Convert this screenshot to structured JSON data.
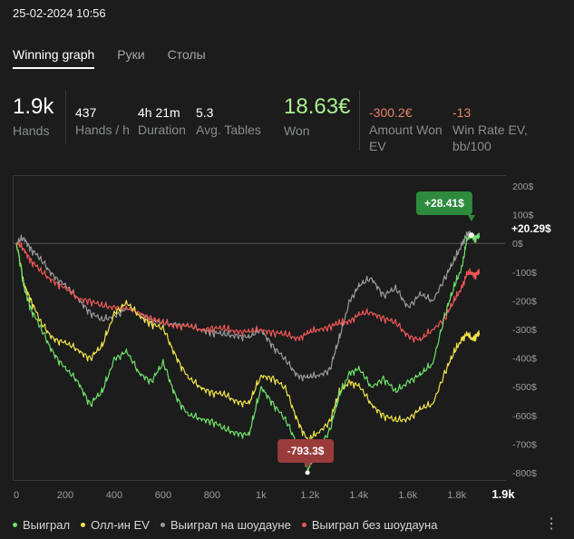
{
  "header": {
    "timestamp": "25-02-2024 10:56"
  },
  "tabs": [
    {
      "label": "Winning graph",
      "active": true
    },
    {
      "label": "Руки",
      "active": false
    },
    {
      "label": "Столы",
      "active": false
    }
  ],
  "stats": {
    "hands": {
      "value": "1.9k",
      "label": "Hands"
    },
    "hands_per_hour": {
      "value": "437",
      "label": "Hands / h"
    },
    "duration": {
      "value": "4h 21m",
      "label": "Duration"
    },
    "avg_tables": {
      "value": "5.3",
      "label": "Avg. Tables"
    },
    "won": {
      "value": "18.63€",
      "label": "Won"
    },
    "amount_won_ev": {
      "value": "-300.2€",
      "label": "Amount Won EV"
    },
    "win_rate_ev": {
      "value": "-13",
      "label": "Win Rate EV, bb/100"
    }
  },
  "colors": {
    "won": "#6ee06a",
    "allin_ev": "#f2e34a",
    "showdown": "#9a9a9a",
    "non_showdown": "#ef5656",
    "positive": "#a9f08a",
    "negative": "#e8846b",
    "callout_max": "#2e8b3e",
    "callout_min": "#9a3b3b"
  },
  "chart_data": {
    "type": "line",
    "x_ticks": [
      "0",
      "200",
      "400",
      "600",
      "800",
      "1k",
      "1.2k",
      "1.4k",
      "1.6k",
      "1.8k"
    ],
    "x_end_label": "1.9k",
    "y_ticks": [
      "200$",
      "100$",
      "0$",
      "-100$",
      "-200$",
      "-300$",
      "-400$",
      "-500$",
      "-600$",
      "-700$",
      "-800$"
    ],
    "xlim": [
      0,
      1890
    ],
    "ylim": [
      -820,
      230
    ],
    "reference_line": 0,
    "callouts": {
      "max": {
        "label": "+28.41$",
        "x": 1860,
        "y": 28.41
      },
      "min": {
        "label": "-793.3$",
        "x": 1190,
        "y": -793.3
      },
      "end": {
        "label": "+20.29$",
        "y": 20.29
      }
    },
    "series": [
      {
        "name": "Выиграл",
        "x": [
          0,
          30,
          60,
          100,
          150,
          200,
          250,
          300,
          350,
          400,
          450,
          500,
          550,
          600,
          650,
          700,
          750,
          800,
          850,
          900,
          950,
          1000,
          1050,
          1100,
          1150,
          1190,
          1230,
          1280,
          1320,
          1360,
          1400,
          1450,
          1500,
          1550,
          1600,
          1650,
          1700,
          1750,
          1790,
          1820,
          1840,
          1860,
          1875,
          1890
        ],
        "y": [
          0,
          -150,
          -230,
          -300,
          -380,
          -440,
          -480,
          -560,
          -520,
          -400,
          -380,
          -450,
          -480,
          -420,
          -530,
          -600,
          -610,
          -620,
          -650,
          -660,
          -670,
          -500,
          -560,
          -620,
          -700,
          -793.3,
          -720,
          -650,
          -530,
          -450,
          -440,
          -500,
          -470,
          -520,
          -480,
          -460,
          -420,
          -250,
          -150,
          -80,
          10,
          28.41,
          18,
          20.29
        ]
      },
      {
        "name": "Олл-ин EV",
        "x": [
          0,
          30,
          60,
          100,
          150,
          200,
          250,
          300,
          350,
          400,
          450,
          500,
          550,
          600,
          650,
          700,
          750,
          800,
          850,
          900,
          950,
          1000,
          1050,
          1100,
          1150,
          1190,
          1230,
          1280,
          1320,
          1360,
          1400,
          1450,
          1500,
          1550,
          1600,
          1650,
          1700,
          1750,
          1790,
          1820,
          1840,
          1860,
          1875,
          1890
        ],
        "y": [
          0,
          -140,
          -200,
          -280,
          -330,
          -350,
          -370,
          -400,
          -360,
          -240,
          -210,
          -250,
          -280,
          -300,
          -390,
          -470,
          -500,
          -520,
          -530,
          -550,
          -560,
          -460,
          -470,
          -510,
          -620,
          -690,
          -660,
          -620,
          -520,
          -480,
          -500,
          -560,
          -600,
          -620,
          -610,
          -580,
          -560,
          -450,
          -380,
          -330,
          -320,
          -330,
          -325,
          -320
        ]
      },
      {
        "name": "Выиграл на шоудауне",
        "x": [
          0,
          30,
          60,
          100,
          150,
          200,
          250,
          300,
          350,
          400,
          450,
          500,
          550,
          600,
          650,
          700,
          750,
          800,
          850,
          900,
          950,
          1000,
          1050,
          1100,
          1150,
          1190,
          1230,
          1280,
          1320,
          1360,
          1400,
          1450,
          1500,
          1550,
          1600,
          1650,
          1700,
          1750,
          1790,
          1820,
          1840,
          1860,
          1875,
          1890
        ],
        "y": [
          0,
          20,
          -20,
          -60,
          -110,
          -150,
          -190,
          -240,
          -270,
          -250,
          -230,
          -240,
          -270,
          -280,
          -280,
          -290,
          -300,
          -310,
          -320,
          -320,
          -330,
          -300,
          -360,
          -410,
          -460,
          -470,
          -460,
          -440,
          -330,
          -200,
          -150,
          -120,
          -180,
          -160,
          -220,
          -180,
          -200,
          -120,
          -60,
          0,
          28.41,
          28.41,
          20,
          20.29
        ]
      },
      {
        "name": "Выиграл без шоудауна",
        "x": [
          0,
          30,
          60,
          100,
          150,
          200,
          250,
          300,
          350,
          400,
          450,
          500,
          550,
          600,
          650,
          700,
          750,
          800,
          850,
          900,
          950,
          1000,
          1050,
          1100,
          1150,
          1190,
          1230,
          1280,
          1320,
          1360,
          1400,
          1450,
          1500,
          1550,
          1600,
          1650,
          1700,
          1750,
          1790,
          1820,
          1840,
          1860,
          1875,
          1890
        ],
        "y": [
          0,
          -20,
          -60,
          -100,
          -130,
          -160,
          -190,
          -200,
          -220,
          -220,
          -230,
          -240,
          -260,
          -280,
          -285,
          -290,
          -300,
          -295,
          -300,
          -305,
          -310,
          -300,
          -310,
          -320,
          -330,
          -315,
          -300,
          -290,
          -280,
          -270,
          -250,
          -240,
          -260,
          -280,
          -320,
          -340,
          -300,
          -260,
          -200,
          -150,
          -110,
          -100,
          -110,
          -105
        ]
      }
    ]
  }
}
